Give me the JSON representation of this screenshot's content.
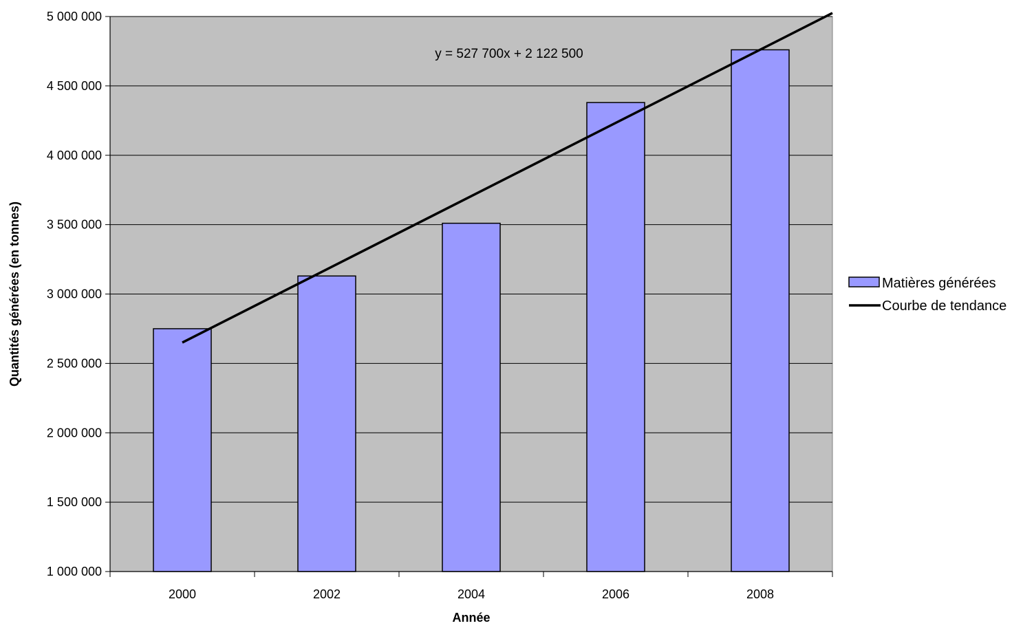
{
  "chart_data": {
    "type": "bar",
    "categories": [
      "2000",
      "2002",
      "2004",
      "2006",
      "2008"
    ],
    "series": [
      {
        "name": "Matières générées",
        "values": [
          2750000,
          3130000,
          3510000,
          4380000,
          4760000
        ],
        "color": "#9999ff"
      }
    ],
    "trendline": {
      "name": "Courbe de tendance",
      "equation": "y = 527 700x + 2 122 500",
      "slope": 527700,
      "intercept": 2122500,
      "x_start": 1,
      "x_end": 5.5,
      "color": "#000000"
    },
    "title": "",
    "xlabel": "Année",
    "ylabel": "Quantités générées (en tonnes)",
    "ylim": [
      1000000,
      5000000
    ],
    "yticks": [
      1000000,
      1500000,
      2000000,
      2500000,
      3000000,
      3500000,
      4000000,
      4500000,
      5000000
    ],
    "ytick_labels": [
      "1 000 000",
      "1 500 000",
      "2 000 000",
      "2 500 000",
      "3 000 000",
      "3 500 000",
      "4 000 000",
      "4 500 000",
      "5 000 000"
    ],
    "grid": true,
    "legend_position": "right",
    "plot_background": "#c0c0c0"
  }
}
